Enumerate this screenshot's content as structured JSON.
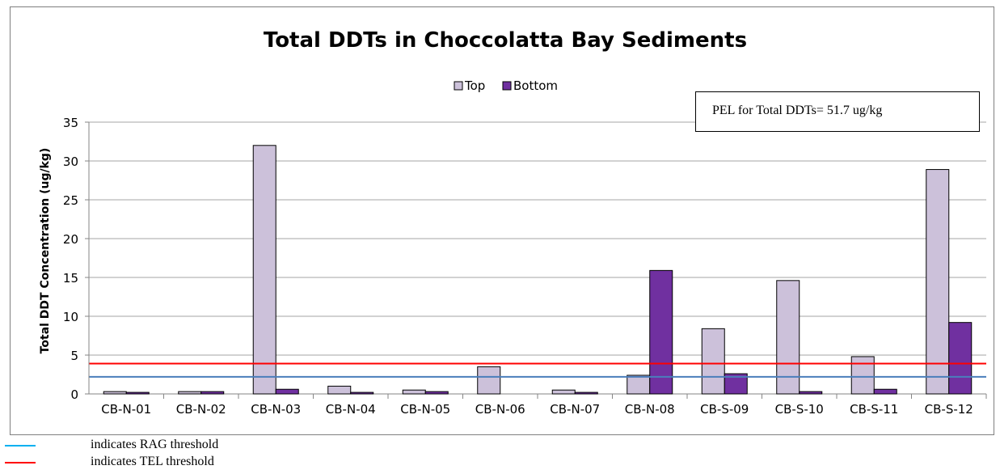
{
  "chart_data": {
    "type": "bar",
    "title": "Total DDTs in Choccolatta Bay Sediments",
    "ylabel": "Total DDT Concentration (ug/kg)",
    "xlabel": "",
    "ylim": [
      0,
      35
    ],
    "yticks": [
      0,
      5,
      10,
      15,
      20,
      25,
      30,
      35
    ],
    "grid": true,
    "legend_position": "top-center",
    "categories": [
      "CB-N-01",
      "CB-N-02",
      "CB-N-03",
      "CB-N-04",
      "CB-N-05",
      "CB-N-06",
      "CB-N-07",
      "CB-N-08",
      "CB-S-09",
      "CB-S-10",
      "CB-S-11",
      "CB-S-12"
    ],
    "series": [
      {
        "name": "Top",
        "color": "#ccc1da",
        "values": [
          0.3,
          0.3,
          32.0,
          1.0,
          0.5,
          3.5,
          0.5,
          2.4,
          8.4,
          14.6,
          4.8,
          28.9
        ]
      },
      {
        "name": "Bottom",
        "color": "#7030a0",
        "values": [
          0.2,
          0.3,
          0.6,
          0.2,
          0.3,
          0.0,
          0.2,
          15.9,
          2.6,
          0.3,
          0.6,
          9.2
        ]
      }
    ],
    "thresholds": [
      {
        "name": "RAG",
        "value": 2.2,
        "color": "#4a7ebb"
      },
      {
        "name": "TEL",
        "value": 3.9,
        "color": "#ff0000"
      }
    ],
    "annotation": "PEL for Total DDTs= 51.7 ug/kg"
  },
  "footnotes": [
    {
      "text": "indicates RAG threshold",
      "color": "#00b0f0"
    },
    {
      "text": "indicates TEL threshold",
      "color": "#ff0000"
    }
  ]
}
